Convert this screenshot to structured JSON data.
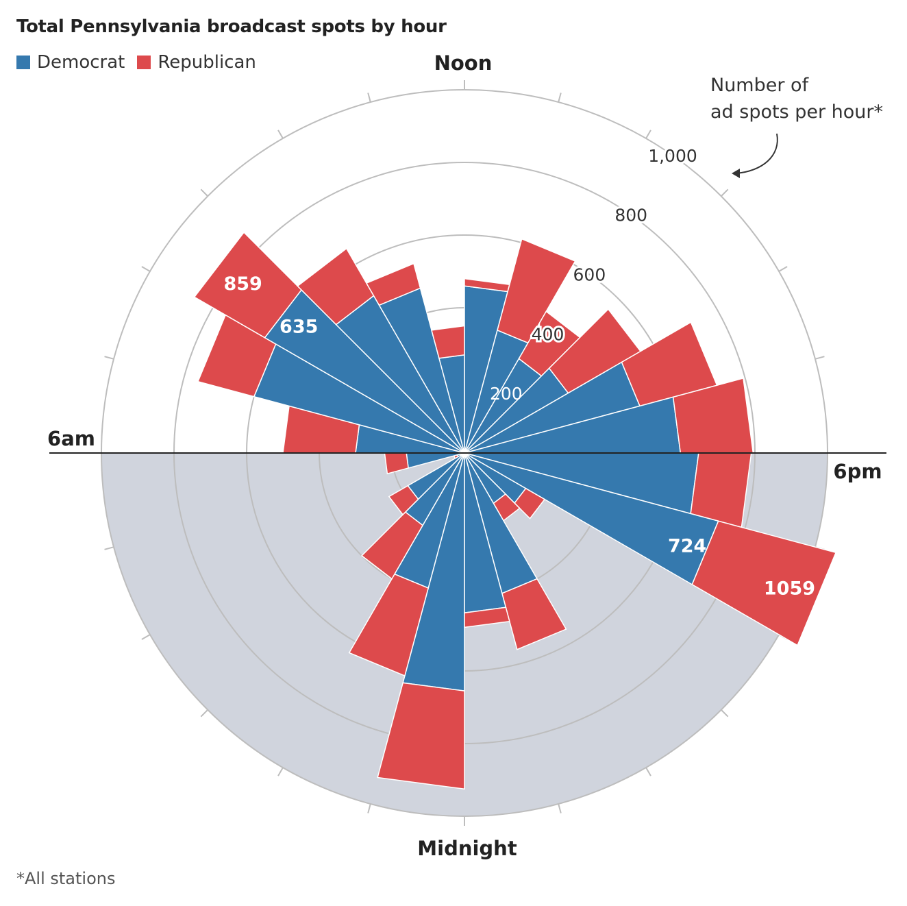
{
  "title": "Total Pennsylvania broadcast spots by hour",
  "legend": [
    {
      "name": "Democrat",
      "color": "#3579ae"
    },
    {
      "name": "Republican",
      "color": "#dd4a4c"
    }
  ],
  "axis_note": {
    "line1": "Number of",
    "line2": "ad spots per hour*"
  },
  "footnote": "*All stations",
  "colors": {
    "democrat": "#3579ae",
    "republican": "#dd4a4c",
    "night_shade": "#d0d4dd",
    "grid": "#bdbdbd"
  },
  "chart_data": {
    "type": "polar-bar",
    "title": "Total Pennsylvania broadcast spots by hour",
    "hour_labels": {
      "noon": "Noon",
      "six_pm": "6pm",
      "midnight": "Midnight",
      "six_am": "6am"
    },
    "radial_ticks": [
      200,
      400,
      600,
      800,
      1000
    ],
    "radial_tick_labels": [
      "200",
      "400",
      "600",
      "800",
      "1,000"
    ],
    "rmax": 1000,
    "stacked": true,
    "hours": [
      "12am",
      "1am",
      "2am",
      "3am",
      "4am",
      "5am",
      "6am",
      "7am",
      "8am",
      "9am",
      "10am",
      "11am",
      "12pm",
      "1pm",
      "2pm",
      "3pm",
      "4pm",
      "5pm",
      "6pm",
      "7pm",
      "8pm",
      "9pm",
      "10pm",
      "11pm"
    ],
    "series": [
      {
        "name": "Democrat",
        "values": [
          655,
          385,
          230,
          180,
          20,
          160,
          300,
          600,
          635,
          500,
          470,
          270,
          460,
          350,
          300,
          330,
          500,
          595,
          645,
          724,
          195,
          160,
          400,
          440
        ]
      },
      {
        "name": "Republican",
        "values": [
          270,
          250,
          170,
          60,
          10,
          60,
          200,
          160,
          224,
          150,
          70,
          80,
          20,
          260,
          150,
          230,
          220,
          200,
          145,
          335,
          60,
          55,
          160,
          40
        ]
      }
    ],
    "data_labels": [
      {
        "hour": "7pm",
        "series": "Democrat",
        "text": "724"
      },
      {
        "hour": "7pm",
        "series": "Republican",
        "text": "1059"
      },
      {
        "hour": "8am",
        "series": "Democrat",
        "text": "635"
      },
      {
        "hour": "8am",
        "series": "Republican",
        "text": "859"
      }
    ]
  }
}
